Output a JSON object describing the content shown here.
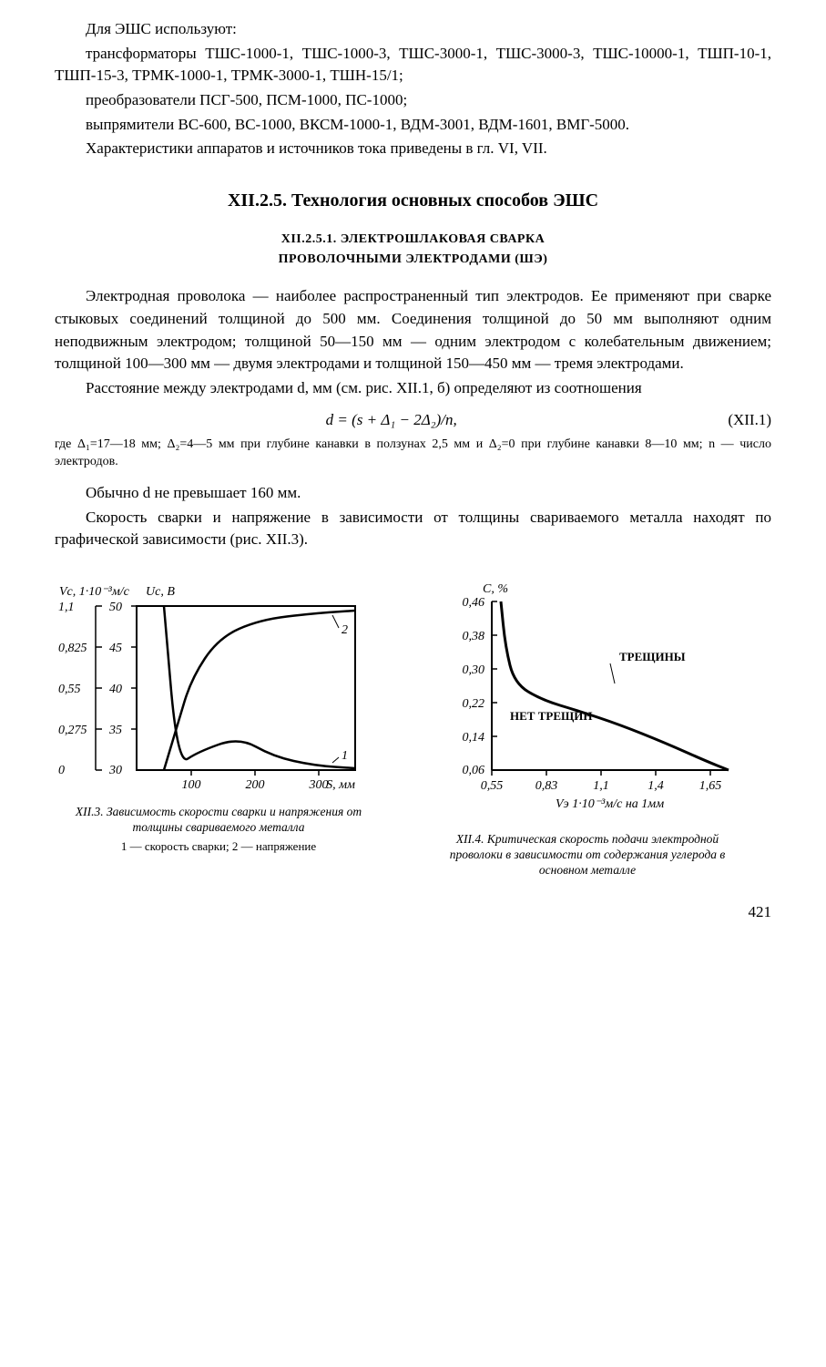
{
  "intro": {
    "p1": "Для ЭШС используют:",
    "p2": "трансформаторы ТШС-1000-1, ТШС-1000-3, ТШС-3000-1, ТШС-3000-3, ТШС-10000-1, ТШП-10-1, ТШП-15-3, ТРМК-1000-1, ТРМК-3000-1, ТШН-15/1;",
    "p3": "преобразователи ПСГ-500, ПСМ-1000, ПС-1000;",
    "p4": "выпрямители ВС-600, ВС-1000, ВКСМ-1000-1, ВДМ-3001, ВДМ-1601, ВМГ-5000.",
    "p5": "Характеристики аппаратов и источников тока приведены в гл. VI, VII."
  },
  "heading_main": "XII.2.5. Технология основных способов ЭШС",
  "heading_sub1": "XII.2.5.1. ЭЛЕКТРОШЛАКОВАЯ СВАРКА",
  "heading_sub2": "ПРОВОЛОЧНЫМИ ЭЛЕКТРОДАМИ (ШЭ)",
  "body": {
    "p1": "Электродная проволока — наиболее распространенный тип электродов. Ее применяют при сварке стыковых соединений толщиной до 500 мм. Соединения толщиной до 50 мм выполняют одним неподвижным электродом; толщиной 50—150 мм — одним электродом с колебательным движением; толщиной 100—300 мм — двумя электродами и толщиной 150—450 мм — тремя электродами.",
    "p2": "Расстояние между электродами d, мм (см. рис. XII.1, б) определяют из соотношения",
    "formula": "d = (s + Δ₁ − 2Δ₂)/n,",
    "formula_num": "(XII.1)",
    "fine": "где Δ₁=17—18 мм; Δ₂=4—5 мм при глубине канавки в ползунах 2,5 мм и Δ₂=0 при глубине канавки 8—10 мм; n — число электродов.",
    "p3": "Обычно d не превышает 160 мм.",
    "p4": "Скорость сварки и напряжение в зависимости от толщины свариваемого металла находят по графической зависимости (рис. XII.3)."
  },
  "chart_left": {
    "type": "line",
    "y1_label": "Vс, 1·10⁻³м/c",
    "y2_label": "Uс, В",
    "y1_ticks": [
      "1,1",
      "0,825",
      "0,55",
      "0,275",
      "0"
    ],
    "y2_ticks": [
      "50",
      "45",
      "40",
      "35",
      "30"
    ],
    "x_ticks": [
      "100",
      "200",
      "300"
    ],
    "x_label": "S, мм",
    "series1_label": "1",
    "series2_label": "2",
    "series1_points": [
      [
        40,
        0
      ],
      [
        60,
        175
      ],
      [
        90,
        160
      ],
      [
        150,
        144
      ],
      [
        200,
        165
      ],
      [
        260,
        175
      ],
      [
        320,
        178
      ]
    ],
    "series2_points": [
      [
        40,
        180
      ],
      [
        60,
        130
      ],
      [
        80,
        80
      ],
      [
        120,
        35
      ],
      [
        180,
        15
      ],
      [
        260,
        8
      ],
      [
        320,
        5
      ]
    ],
    "line_color": "#000000",
    "line_width": 2.5,
    "axis_color": "#000000",
    "caption_title": "XII.3. Зависимость скорости сварки и напряжения от толщины свариваемого металла",
    "caption_legend": "1 — скорость сварки; 2 — напряжение"
  },
  "chart_right": {
    "type": "line-boundary",
    "y_label": "C, %",
    "y_ticks": [
      "0,46",
      "0,38",
      "0,30",
      "0,22",
      "0,14",
      "0,06"
    ],
    "x_ticks": [
      "0,55",
      "0,83",
      "1,1",
      "1,4",
      "1,65"
    ],
    "x_label": "Vэ 1·10⁻³м/c на 1мм",
    "region_upper": "ТРЕЩИНЫ",
    "region_lower": "НЕТ ТРЕЩИН",
    "boundary_points": [
      [
        10,
        0
      ],
      [
        15,
        50
      ],
      [
        25,
        90
      ],
      [
        55,
        108
      ],
      [
        95,
        120
      ],
      [
        140,
        135
      ],
      [
        190,
        155
      ],
      [
        235,
        175
      ],
      [
        260,
        185
      ]
    ],
    "line_color": "#000000",
    "line_width": 3,
    "axis_color": "#000000",
    "caption_title": "XII.4. Критическая скорость подачи электродной проволоки в зависимости от содержания углерода в основном металле"
  },
  "page_number": "421"
}
